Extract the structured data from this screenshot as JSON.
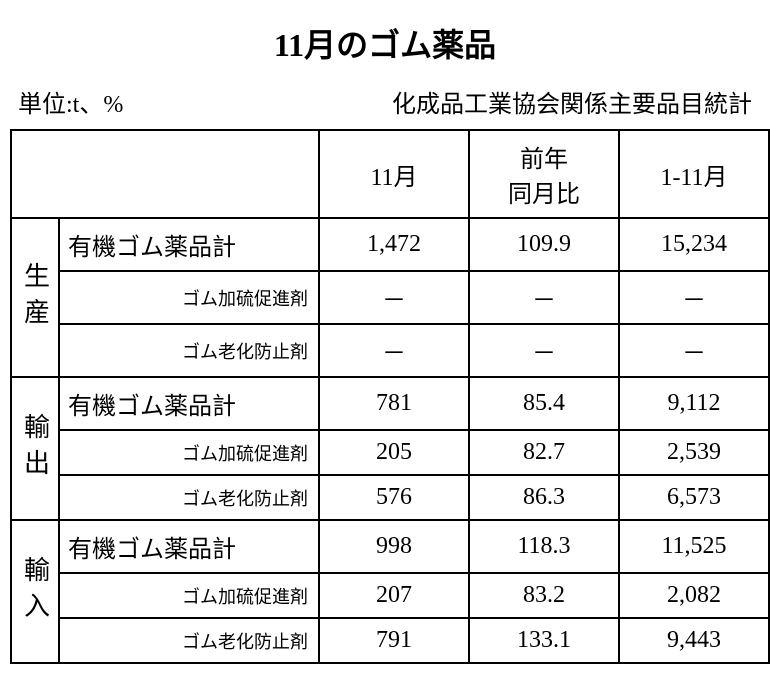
{
  "title": "11月のゴム薬品",
  "unit_label": "単位:t、%",
  "source_label": "化成品工業協会関係主要品目統計",
  "columns": [
    "11月",
    "前年\n同月比",
    "1-11月"
  ],
  "sections": [
    {
      "name": "生産",
      "rows": [
        {
          "label": "有機ゴム薬品計",
          "sub": false,
          "vals": [
            "1,472",
            "109.9",
            "15,234"
          ]
        },
        {
          "label": "ゴム加硫促進剤",
          "sub": true,
          "vals": [
            "－",
            "－",
            "－"
          ]
        },
        {
          "label": "ゴム老化防止剤",
          "sub": true,
          "vals": [
            "－",
            "－",
            "－"
          ]
        }
      ]
    },
    {
      "name": "輸出",
      "rows": [
        {
          "label": "有機ゴム薬品計",
          "sub": false,
          "vals": [
            "781",
            "85.4",
            "9,112"
          ]
        },
        {
          "label": "ゴム加硫促進剤",
          "sub": true,
          "vals": [
            "205",
            "82.7",
            "2,539"
          ]
        },
        {
          "label": "ゴム老化防止剤",
          "sub": true,
          "vals": [
            "576",
            "86.3",
            "6,573"
          ]
        }
      ]
    },
    {
      "name": "輸入",
      "rows": [
        {
          "label": "有機ゴム薬品計",
          "sub": false,
          "vals": [
            "998",
            "118.3",
            "11,525"
          ]
        },
        {
          "label": "ゴム加硫促進剤",
          "sub": true,
          "vals": [
            "207",
            "83.2",
            "2,082"
          ]
        },
        {
          "label": "ゴム老化防止剤",
          "sub": true,
          "vals": [
            "791",
            "133.1",
            "9,443"
          ]
        }
      ]
    }
  ],
  "style": {
    "border_color": "#000000",
    "bg_color": "#ffffff",
    "title_fontsize": 32,
    "body_fontsize": 24,
    "sub_fontsize": 18
  }
}
